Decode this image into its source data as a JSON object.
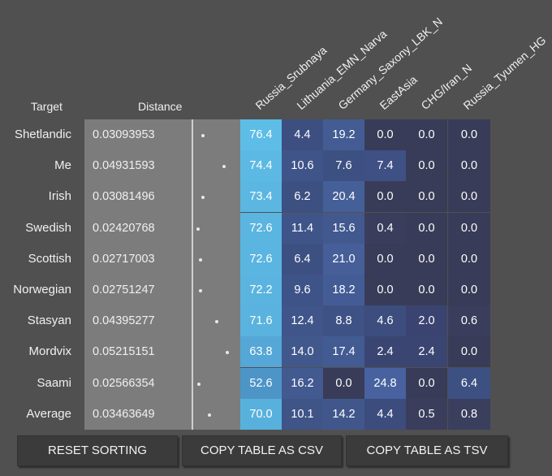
{
  "headers": {
    "target": "Target",
    "distance": "Distance",
    "columns": [
      "Russia_Srubnaya",
      "Lithuania_EMN_Narva",
      "Germany_Saxony_LBK_N",
      "EastAsia",
      "CHG/Iran_N",
      "Russia_Tyumen_HG"
    ]
  },
  "rows": [
    {
      "name": "Shetlandic",
      "distance": "0.03093953",
      "values": [
        "76.4",
        "4.4",
        "19.2",
        "0.0",
        "0.0",
        "0.0"
      ],
      "colors": [
        "#5ebde6",
        "#3c4f80",
        "#435c94",
        "#393c58",
        "#393c58",
        "#393c58"
      ]
    },
    {
      "name": "Me",
      "distance": "0.04931593",
      "values": [
        "74.4",
        "10.6",
        "7.6",
        "7.4",
        "0.0",
        "0.0"
      ],
      "colors": [
        "#5cb9e3",
        "#3f5488",
        "#3d5082",
        "#3e5084",
        "#393c58",
        "#393c58"
      ]
    },
    {
      "name": "Irish",
      "distance": "0.03081496",
      "values": [
        "73.4",
        "6.2",
        "20.4",
        "0.0",
        "0.0",
        "0.0"
      ],
      "colors": [
        "#5bb7e1",
        "#3d5082",
        "#455f98",
        "#393c58",
        "#393c58",
        "#393c58"
      ]
    },
    {
      "name": "Swedish",
      "distance": "0.02420768",
      "values": [
        "72.6",
        "11.4",
        "15.6",
        "0.4",
        "0.0",
        "0.0"
      ],
      "colors": [
        "#5ab5e0",
        "#3f5589",
        "#42598f",
        "#3a3e5c",
        "#393c58",
        "#393c58"
      ]
    },
    {
      "name": "Scottish",
      "distance": "0.02717003",
      "values": [
        "72.6",
        "6.4",
        "21.0",
        "0.0",
        "0.0",
        "0.0"
      ],
      "colors": [
        "#5ab5e0",
        "#3d5082",
        "#465f99",
        "#393c58",
        "#393c58",
        "#393c58"
      ]
    },
    {
      "name": "Norwegian",
      "distance": "0.02751247",
      "values": [
        "72.2",
        "9.6",
        "18.2",
        "0.0",
        "0.0",
        "0.0"
      ],
      "colors": [
        "#5ab4df",
        "#3e5387",
        "#445c95",
        "#393c58",
        "#393c58",
        "#393c58"
      ]
    },
    {
      "name": "Stasyan",
      "distance": "0.04395277",
      "values": [
        "71.6",
        "12.4",
        "8.8",
        "4.6",
        "2.0",
        "0.6"
      ],
      "colors": [
        "#59b3de",
        "#40568a",
        "#3e5285",
        "#3c4d7e",
        "#3b4470",
        "#3a3e5c"
      ]
    },
    {
      "name": "Mordvix",
      "distance": "0.05215151",
      "values": [
        "63.8",
        "14.0",
        "17.4",
        "2.4",
        "2.4",
        "0.0"
      ],
      "colors": [
        "#54a7d6",
        "#41588d",
        "#435b93",
        "#3b4572",
        "#3b4572",
        "#393c58"
      ]
    },
    {
      "name": "Saami",
      "distance": "0.02566354",
      "values": [
        "52.6",
        "16.2",
        "0.0",
        "24.8",
        "0.0",
        "6.4"
      ],
      "colors": [
        "#4d95c7",
        "#425a90",
        "#393c58",
        "#4862a0",
        "#393c58",
        "#3d5082"
      ]
    },
    {
      "name": "Average",
      "distance": "0.03463649",
      "values": [
        "70.0",
        "10.1",
        "14.2",
        "4.4",
        "0.5",
        "0.8"
      ],
      "colors": [
        "#58b1dc",
        "#3f5487",
        "#41578c",
        "#3c4c7c",
        "#3a3e5c",
        "#3a3f5e"
      ]
    }
  ],
  "distance_dot_fraction": [
    0.6,
    0.95,
    0.6,
    0.51,
    0.55,
    0.56,
    0.82,
    1.0,
    0.53,
    0.7
  ],
  "buttons": {
    "reset": "RESET SORTING",
    "csv": "COPY TABLE AS CSV",
    "tsv": "COPY TABLE AS TSV"
  }
}
